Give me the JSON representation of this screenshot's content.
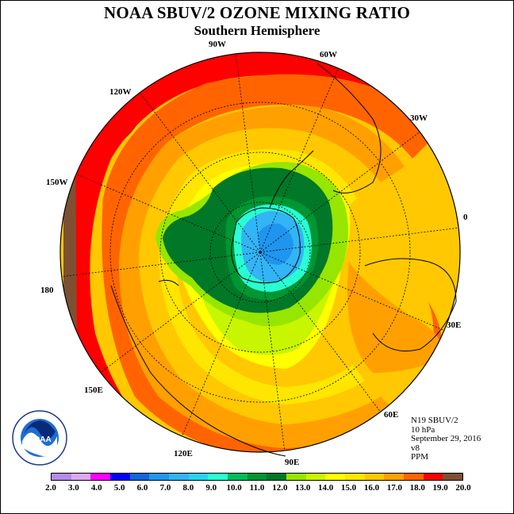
{
  "title": "NOAA SBUV/2 OZONE MIXING RATIO",
  "subtitle": "Southern Hemisphere",
  "longitude_labels": {
    "lon_90w": "90W",
    "lon_60w": "60W",
    "lon_30w": "30W",
    "lon_0": "0",
    "lon_30e": "30E",
    "lon_60e": "60E",
    "lon_90e": "90E",
    "lon_120e": "120E",
    "lon_150e": "150E",
    "lon_180": "180",
    "lon_150w": "150W",
    "lon_120w": "120W"
  },
  "info": {
    "instrument": "N19 SBUV/2",
    "level": "10 hPa",
    "date": "September 29, 2016",
    "version": "v8",
    "units": "PPM"
  },
  "logo_text": "NOAA",
  "colorbar": {
    "colors": [
      "#b48ceb",
      "#dcaaf0",
      "#ff00ff",
      "#0000ff",
      "#1464dc",
      "#1e96f0",
      "#32b4f5",
      "#28d2f0",
      "#28ffd2",
      "#00be5a",
      "#009632",
      "#007828",
      "#96e600",
      "#c8f500",
      "#ffff00",
      "#ffe600",
      "#ffc800",
      "#ffa000",
      "#ff6400",
      "#ff0000",
      "#7d5032"
    ],
    "tick_labels": [
      "2.0",
      "3.0",
      "4.0",
      "5.0",
      "6.0",
      "7.0",
      "8.0",
      "9.0",
      "10.0",
      "11.0",
      "12.0",
      "13.0",
      "14.0",
      "15.0",
      "16.0",
      "17.0",
      "18.0",
      "19.0",
      "20.0"
    ]
  },
  "map_layers": {
    "background": "#ffc800",
    "ring_colors": [
      "#7d5032",
      "#ff0000",
      "#ff6400",
      "#ffa000",
      "#ffc800",
      "#ffe600",
      "#ffff00",
      "#c8f500",
      "#96e600",
      "#009632",
      "#007828",
      "#28ffd2",
      "#32b4f5",
      "#1e96f0"
    ]
  }
}
